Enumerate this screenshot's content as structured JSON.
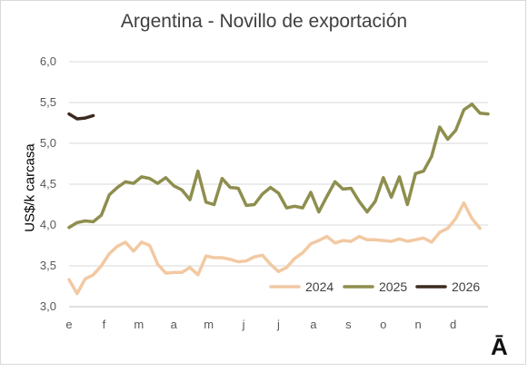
{
  "chart_data": {
    "type": "line",
    "title": "Argentina - Novillo de exportación",
    "ylabel": "US$/k carcasa",
    "xlabel": "",
    "ylim": [
      3.0,
      6.0
    ],
    "yticks": [
      "3,0",
      "3,5",
      "4,0",
      "4,5",
      "5,0",
      "5,5",
      "6,0"
    ],
    "xticks": [
      "e",
      "f",
      "m",
      "a",
      "m",
      "j",
      "j",
      "a",
      "s",
      "o",
      "n",
      "d"
    ],
    "weeks_per_year": 52,
    "grid": "horizontal",
    "legend_position": "bottom-right",
    "series": [
      {
        "name": "2024",
        "color": "#f2c9a2",
        "values": [
          3.33,
          3.16,
          3.34,
          3.39,
          3.5,
          3.65,
          3.74,
          3.79,
          3.68,
          3.79,
          3.75,
          3.52,
          3.41,
          3.42,
          3.42,
          3.48,
          3.39,
          3.62,
          3.6,
          3.6,
          3.58,
          3.55,
          3.56,
          3.61,
          3.63,
          3.52,
          3.43,
          3.48,
          3.59,
          3.66,
          3.77,
          3.81,
          3.86,
          3.78,
          3.81,
          3.8,
          3.86,
          3.82,
          3.82,
          3.81,
          3.8,
          3.83,
          3.8,
          3.82,
          3.84,
          3.79,
          3.91,
          3.96,
          4.08,
          4.27,
          4.08,
          3.96
        ]
      },
      {
        "name": "2025",
        "color": "#8e8e4e",
        "values": [
          3.97,
          4.03,
          4.05,
          4.04,
          4.12,
          4.37,
          4.46,
          4.53,
          4.51,
          4.59,
          4.57,
          4.51,
          4.58,
          4.48,
          4.43,
          4.31,
          4.66,
          4.28,
          4.25,
          4.57,
          4.46,
          4.45,
          4.24,
          4.25,
          4.38,
          4.46,
          4.39,
          4.21,
          4.23,
          4.21,
          4.4,
          4.16,
          4.35,
          4.53,
          4.44,
          4.45,
          4.29,
          4.16,
          4.29,
          4.58,
          4.34,
          4.59,
          4.25,
          4.63,
          4.66,
          4.84,
          5.2,
          5.05,
          5.16,
          5.41,
          5.48,
          5.37,
          5.36
        ]
      },
      {
        "name": "2026",
        "color": "#3b2a1f",
        "values": [
          5.36,
          5.3,
          5.31,
          5.34
        ]
      }
    ]
  }
}
